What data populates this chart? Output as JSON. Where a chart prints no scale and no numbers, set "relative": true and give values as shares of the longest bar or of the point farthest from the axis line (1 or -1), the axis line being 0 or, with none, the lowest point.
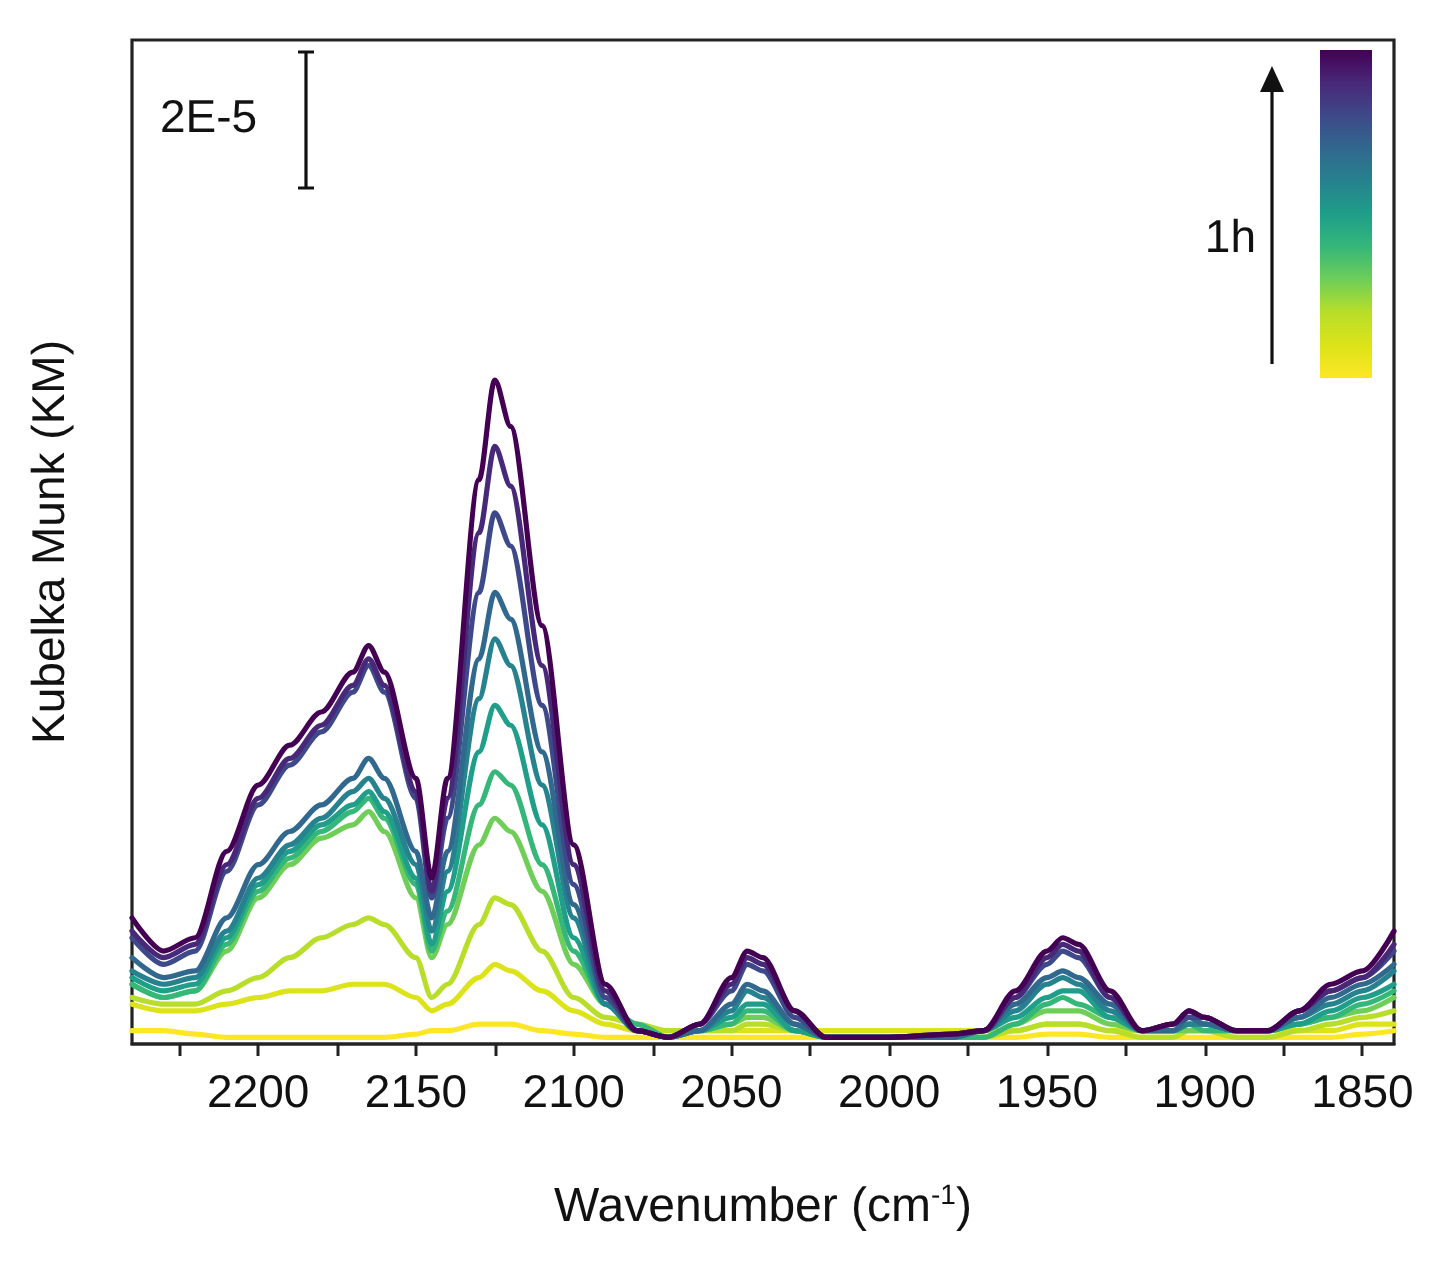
{
  "chart_data": {
    "type": "line",
    "relative": true,
    "xlabel": "Wavenumber (cm$^{-1}$)",
    "ylabel": "Kubelka Munk (KM)",
    "annotations": [
      "2E-5",
      "1h"
    ],
    "xlim": [
      2240,
      1840
    ],
    "xticks": [
      2200,
      2150,
      2100,
      2050,
      2000,
      1950,
      1900,
      1850,
      {
        "value": 2225,
        "label": null
      },
      {
        "value": 2175,
        "label": null
      },
      {
        "value": 2125,
        "label": null
      },
      {
        "value": 2075,
        "label": null
      },
      {
        "value": 2025,
        "label": null
      },
      {
        "value": 1975,
        "label": null
      },
      {
        "value": 1925,
        "label": null
      },
      {
        "value": 1875,
        "label": null
      }
    ],
    "x": [
      2240,
      2230,
      2220,
      2210,
      2200,
      2190,
      2180,
      2170,
      2165,
      2160,
      2150,
      2145,
      2140,
      2130,
      2125,
      2120,
      2110,
      2100,
      2090,
      2080,
      2070,
      2060,
      2050,
      2045,
      2040,
      2030,
      2020,
      2000,
      1980,
      1970,
      1960,
      1950,
      1945,
      1940,
      1930,
      1920,
      1910,
      1905,
      1900,
      1890,
      1880,
      1870,
      1860,
      1850,
      1840
    ],
    "grid": false,
    "marker": "none",
    "line_style": "solid",
    "series": [
      {
        "color": "#fde725",
        "values": [
          0.02,
          0.02,
          0.015,
          0.01,
          0.01,
          0.01,
          0.01,
          0.01,
          0.01,
          0.01,
          0.015,
          0.02,
          0.02,
          0.03,
          0.03,
          0.03,
          0.02,
          0.015,
          0.01,
          0.01,
          0.01,
          0.01,
          0.01,
          0.01,
          0.01,
          0.01,
          0.01,
          0.01,
          0.01,
          0.01,
          0.01,
          0.015,
          0.015,
          0.015,
          0.01,
          0.01,
          0.01,
          0.01,
          0.01,
          0.01,
          0.01,
          0.01,
          0.01,
          0.015,
          0.02
        ]
      },
      {
        "color": "#dce319",
        "values": [
          0.06,
          0.05,
          0.05,
          0.06,
          0.07,
          0.08,
          0.08,
          0.09,
          0.09,
          0.09,
          0.07,
          0.05,
          0.06,
          0.1,
          0.12,
          0.11,
          0.08,
          0.05,
          0.03,
          0.02,
          0.02,
          0.02,
          0.02,
          0.02,
          0.02,
          0.02,
          0.02,
          0.02,
          0.02,
          0.02,
          0.02,
          0.03,
          0.03,
          0.03,
          0.02,
          0.02,
          0.02,
          0.02,
          0.02,
          0.02,
          0.02,
          0.02,
          0.02,
          0.03,
          0.03
        ]
      },
      {
        "color": "#b8de29",
        "values": [
          0.07,
          0.06,
          0.06,
          0.08,
          0.1,
          0.13,
          0.16,
          0.18,
          0.19,
          0.18,
          0.13,
          0.07,
          0.09,
          0.18,
          0.22,
          0.21,
          0.14,
          0.07,
          0.04,
          0.03,
          0.02,
          0.02,
          0.02,
          0.03,
          0.03,
          0.02,
          0.01,
          0.01,
          0.01,
          0.01,
          0.02,
          0.03,
          0.03,
          0.03,
          0.02,
          0.01,
          0.01,
          0.02,
          0.02,
          0.01,
          0.01,
          0.02,
          0.03,
          0.04,
          0.05
        ]
      },
      {
        "color": "#6ece58",
        "values": [
          0.09,
          0.07,
          0.08,
          0.14,
          0.22,
          0.27,
          0.31,
          0.33,
          0.35,
          0.32,
          0.22,
          0.13,
          0.18,
          0.3,
          0.34,
          0.32,
          0.23,
          0.12,
          0.06,
          0.03,
          0.01,
          0.02,
          0.03,
          0.04,
          0.04,
          0.02,
          0.01,
          0.01,
          0.01,
          0.01,
          0.03,
          0.05,
          0.05,
          0.05,
          0.03,
          0.02,
          0.02,
          0.02,
          0.02,
          0.02,
          0.02,
          0.03,
          0.04,
          0.05,
          0.07
        ]
      },
      {
        "color": "#35b779",
        "values": [
          0.09,
          0.07,
          0.08,
          0.15,
          0.23,
          0.28,
          0.32,
          0.35,
          0.37,
          0.34,
          0.24,
          0.14,
          0.2,
          0.36,
          0.41,
          0.39,
          0.27,
          0.14,
          0.06,
          0.03,
          0.01,
          0.02,
          0.03,
          0.05,
          0.05,
          0.02,
          0.01,
          0.01,
          0.01,
          0.01,
          0.03,
          0.06,
          0.07,
          0.06,
          0.04,
          0.02,
          0.02,
          0.03,
          0.02,
          0.02,
          0.02,
          0.03,
          0.04,
          0.06,
          0.08
        ]
      },
      {
        "color": "#1f9e89",
        "values": [
          0.1,
          0.08,
          0.09,
          0.16,
          0.24,
          0.29,
          0.33,
          0.36,
          0.38,
          0.35,
          0.25,
          0.15,
          0.23,
          0.44,
          0.51,
          0.48,
          0.33,
          0.16,
          0.06,
          0.02,
          0.01,
          0.02,
          0.04,
          0.06,
          0.06,
          0.02,
          0.01,
          0.01,
          0.01,
          0.02,
          0.04,
          0.07,
          0.08,
          0.08,
          0.04,
          0.02,
          0.02,
          0.03,
          0.03,
          0.02,
          0.02,
          0.03,
          0.05,
          0.07,
          0.09
        ]
      },
      {
        "color": "#26828e",
        "values": [
          0.11,
          0.09,
          0.1,
          0.17,
          0.25,
          0.3,
          0.34,
          0.38,
          0.4,
          0.37,
          0.27,
          0.17,
          0.26,
          0.52,
          0.61,
          0.57,
          0.39,
          0.19,
          0.06,
          0.02,
          0.01,
          0.02,
          0.05,
          0.08,
          0.07,
          0.03,
          0.01,
          0.01,
          0.01,
          0.02,
          0.05,
          0.09,
          0.1,
          0.09,
          0.05,
          0.02,
          0.02,
          0.03,
          0.03,
          0.02,
          0.02,
          0.04,
          0.06,
          0.08,
          0.11
        ]
      },
      {
        "color": "#31688e",
        "values": [
          0.13,
          0.1,
          0.11,
          0.19,
          0.27,
          0.32,
          0.36,
          0.4,
          0.43,
          0.4,
          0.29,
          0.19,
          0.29,
          0.58,
          0.68,
          0.64,
          0.44,
          0.21,
          0.07,
          0.02,
          0.01,
          0.02,
          0.06,
          0.09,
          0.08,
          0.03,
          0.01,
          0.01,
          0.01,
          0.02,
          0.06,
          0.1,
          0.11,
          0.1,
          0.06,
          0.02,
          0.02,
          0.04,
          0.03,
          0.02,
          0.02,
          0.04,
          0.07,
          0.09,
          0.12
        ]
      },
      {
        "color": "#3e4989",
        "values": [
          0.16,
          0.12,
          0.14,
          0.26,
          0.36,
          0.42,
          0.47,
          0.53,
          0.57,
          0.53,
          0.37,
          0.22,
          0.34,
          0.68,
          0.8,
          0.75,
          0.51,
          0.24,
          0.07,
          0.02,
          0.01,
          0.03,
          0.08,
          0.12,
          0.11,
          0.04,
          0.01,
          0.01,
          0.015,
          0.02,
          0.07,
          0.12,
          0.14,
          0.13,
          0.07,
          0.02,
          0.03,
          0.04,
          0.04,
          0.02,
          0.02,
          0.05,
          0.08,
          0.1,
          0.14
        ]
      },
      {
        "color": "#482878",
        "values": [
          0.17,
          0.13,
          0.15,
          0.27,
          0.37,
          0.43,
          0.48,
          0.54,
          0.58,
          0.54,
          0.38,
          0.23,
          0.37,
          0.77,
          0.9,
          0.84,
          0.57,
          0.27,
          0.08,
          0.02,
          0.01,
          0.03,
          0.09,
          0.13,
          0.12,
          0.05,
          0.01,
          0.01,
          0.015,
          0.02,
          0.07,
          0.13,
          0.15,
          0.14,
          0.07,
          0.02,
          0.03,
          0.05,
          0.04,
          0.02,
          0.02,
          0.05,
          0.08,
          0.1,
          0.15
        ]
      },
      {
        "color": "#440154",
        "values": [
          0.19,
          0.14,
          0.16,
          0.29,
          0.39,
          0.45,
          0.5,
          0.56,
          0.6,
          0.56,
          0.4,
          0.25,
          0.4,
          0.85,
          1.0,
          0.93,
          0.63,
          0.3,
          0.09,
          0.02,
          0.01,
          0.03,
          0.1,
          0.14,
          0.13,
          0.05,
          0.01,
          0.01,
          0.015,
          0.02,
          0.08,
          0.14,
          0.16,
          0.15,
          0.08,
          0.02,
          0.03,
          0.05,
          0.04,
          0.02,
          0.02,
          0.05,
          0.09,
          0.11,
          0.17
        ]
      }
    ]
  }
}
